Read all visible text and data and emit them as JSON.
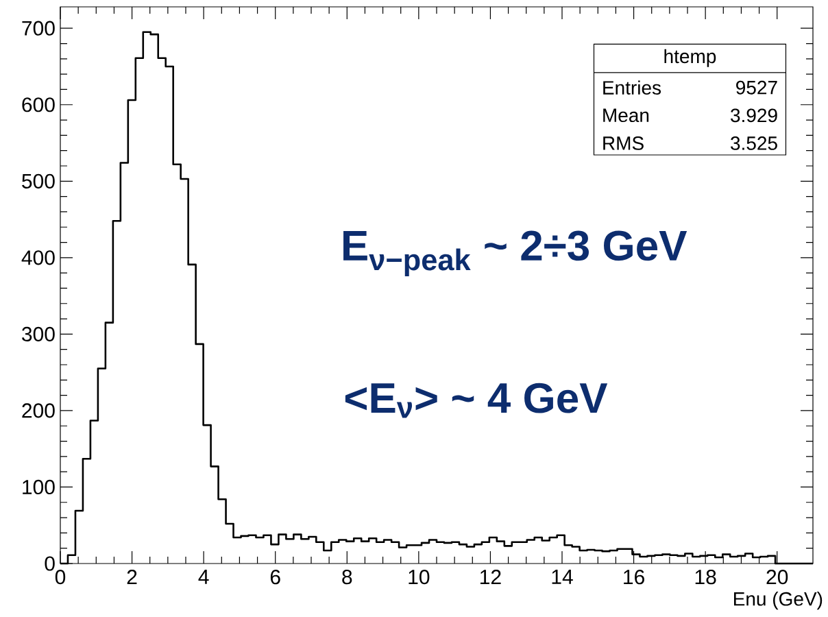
{
  "chart_data": {
    "type": "histogram",
    "bins": [
      0,
      0.21,
      0.42,
      0.63,
      0.84,
      1.05,
      1.26,
      1.47,
      1.68,
      1.89,
      2.1,
      2.31,
      2.52,
      2.73,
      2.94,
      3.15,
      3.36,
      3.57,
      3.78,
      3.99,
      4.2,
      4.41,
      4.62,
      4.83,
      5.04,
      5.25,
      5.46,
      5.67,
      5.88,
      6.09,
      6.3,
      6.51,
      6.72,
      6.93,
      7.14,
      7.35,
      7.56,
      7.77,
      7.98,
      8.19,
      8.4,
      8.61,
      8.82,
      9.03,
      9.24,
      9.45,
      9.66,
      9.87,
      10.08,
      10.29,
      10.5,
      10.71,
      10.92,
      11.13,
      11.34,
      11.55,
      11.76,
      11.97,
      12.18,
      12.39,
      12.6,
      12.81,
      13.02,
      13.23,
      13.44,
      13.65,
      13.86,
      14.07,
      14.28,
      14.49,
      14.7,
      14.91,
      15.12,
      15.33,
      15.54,
      15.75,
      15.96,
      16.17,
      16.38,
      16.59,
      16.8,
      17.01,
      17.22,
      17.43,
      17.64,
      17.85,
      18.06,
      18.27,
      18.48,
      18.69,
      18.9,
      19.11,
      19.32,
      19.53,
      19.74,
      19.95,
      20.16,
      20.37,
      20.58,
      20.79,
      21
    ],
    "values": [
      0,
      11,
      69,
      137,
      187,
      255,
      315,
      448,
      524,
      606,
      661,
      695,
      692,
      661,
      650,
      522,
      503,
      391,
      287,
      181,
      127,
      84,
      52,
      34,
      36,
      37,
      34,
      37,
      25,
      38,
      32,
      38,
      32,
      35,
      28,
      17,
      28,
      31,
      29,
      33,
      29,
      33,
      28,
      31,
      28,
      21,
      24,
      24,
      27,
      31,
      28,
      27,
      28,
      25,
      22,
      25,
      28,
      34,
      29,
      23,
      28,
      28,
      31,
      34,
      30,
      34,
      37,
      24,
      22,
      17,
      18,
      17,
      16,
      17,
      19,
      19,
      12,
      9,
      10,
      11,
      12,
      11,
      10,
      13,
      9,
      10,
      11,
      8,
      12,
      9,
      10,
      13,
      8,
      9,
      10,
      0,
      0,
      0,
      0,
      0
    ],
    "color": "#000000",
    "xlabel": "Enu (GeV)",
    "xlim": [
      0,
      21
    ],
    "ylim": [
      0,
      728
    ],
    "xticks": [
      0,
      2,
      4,
      6,
      8,
      10,
      12,
      14,
      16,
      18,
      20
    ],
    "yticks": [
      0,
      100,
      200,
      300,
      400,
      500,
      600,
      700
    ],
    "grid": false,
    "annotations": [
      "htemp",
      "Entries",
      "9527",
      "Mean",
      "3.929",
      "RMS",
      "3.525",
      "E$_{ν−peak}$ ~ 2÷3 GeV",
      "<E$_{ν}$> ~ 4 GeV"
    ]
  }
}
